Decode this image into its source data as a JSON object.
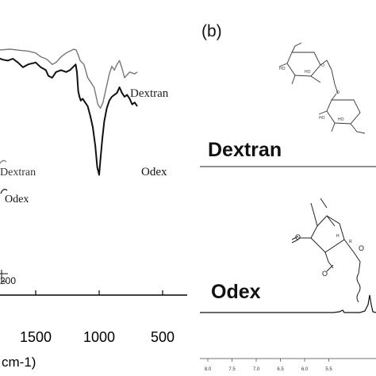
{
  "panel_b": {
    "label": "(b)",
    "dextran_title": "Dextran",
    "odex_title": "Odex",
    "ppm_ticks": [
      "8.0",
      "7.5",
      "7.0",
      "6.5",
      "6.0",
      "5.5"
    ]
  },
  "chart_data": {
    "type": "line",
    "title": "",
    "xlabel": "cm-1)",
    "ylabel": "",
    "x_direction": "reversed",
    "xlim": [
      1900,
      500
    ],
    "xticks": [
      "1500",
      "1000",
      "500"
    ],
    "grid": false,
    "inset_legend": [
      "Dextran",
      "Odex"
    ],
    "inset_legend_tick": "200",
    "curve_labels": [
      "Dextran",
      "Odex"
    ],
    "series": [
      {
        "name": "Dextran",
        "color": "#777777",
        "x": [
          1900,
          1800,
          1700,
          1640,
          1560,
          1500,
          1460,
          1420,
          1400,
          1370,
          1340,
          1300,
          1260,
          1230,
          1200,
          1180,
          1160,
          1150,
          1120,
          1090,
          1070,
          1040,
          1020,
          1010,
          990,
          970,
          950,
          920,
          900,
          880,
          860,
          840,
          820,
          800,
          760,
          720,
          700
        ],
        "y": [
          0.72,
          0.73,
          0.74,
          0.73,
          0.72,
          0.7,
          0.66,
          0.64,
          0.62,
          0.58,
          0.6,
          0.66,
          0.7,
          0.72,
          0.74,
          0.73,
          0.66,
          0.62,
          0.58,
          0.44,
          0.4,
          0.34,
          0.22,
          0.16,
          0.12,
          0.18,
          0.3,
          0.48,
          0.56,
          0.52,
          0.58,
          0.62,
          0.54,
          0.44,
          0.5,
          0.48,
          0.5
        ]
      },
      {
        "name": "Odex",
        "color": "#111111",
        "x": [
          1900,
          1800,
          1760,
          1720,
          1680,
          1640,
          1600,
          1560,
          1500,
          1460,
          1420,
          1400,
          1370,
          1340,
          1300,
          1260,
          1230,
          1200,
          1185,
          1175,
          1165,
          1155,
          1145,
          1130,
          1110,
          1090,
          1070,
          1050,
          1030,
          1015,
          1000,
          990,
          975,
          960,
          940,
          920,
          900,
          880,
          860,
          840,
          820,
          800,
          780,
          760,
          740,
          720,
          700
        ],
        "y": [
          0.64,
          0.65,
          0.63,
          0.62,
          0.64,
          0.6,
          0.55,
          0.58,
          0.6,
          0.55,
          0.52,
          0.46,
          0.44,
          0.5,
          0.52,
          0.5,
          0.52,
          0.56,
          0.58,
          0.5,
          0.3,
          0.24,
          0.2,
          0.22,
          0.18,
          0.14,
          0.04,
          -0.08,
          -0.28,
          -0.5,
          -0.58,
          -0.42,
          -0.2,
          -0.02,
          0.12,
          0.2,
          0.24,
          0.26,
          0.28,
          0.34,
          0.28,
          0.24,
          0.26,
          0.22,
          0.16,
          0.18,
          0.14
        ]
      }
    ]
  }
}
